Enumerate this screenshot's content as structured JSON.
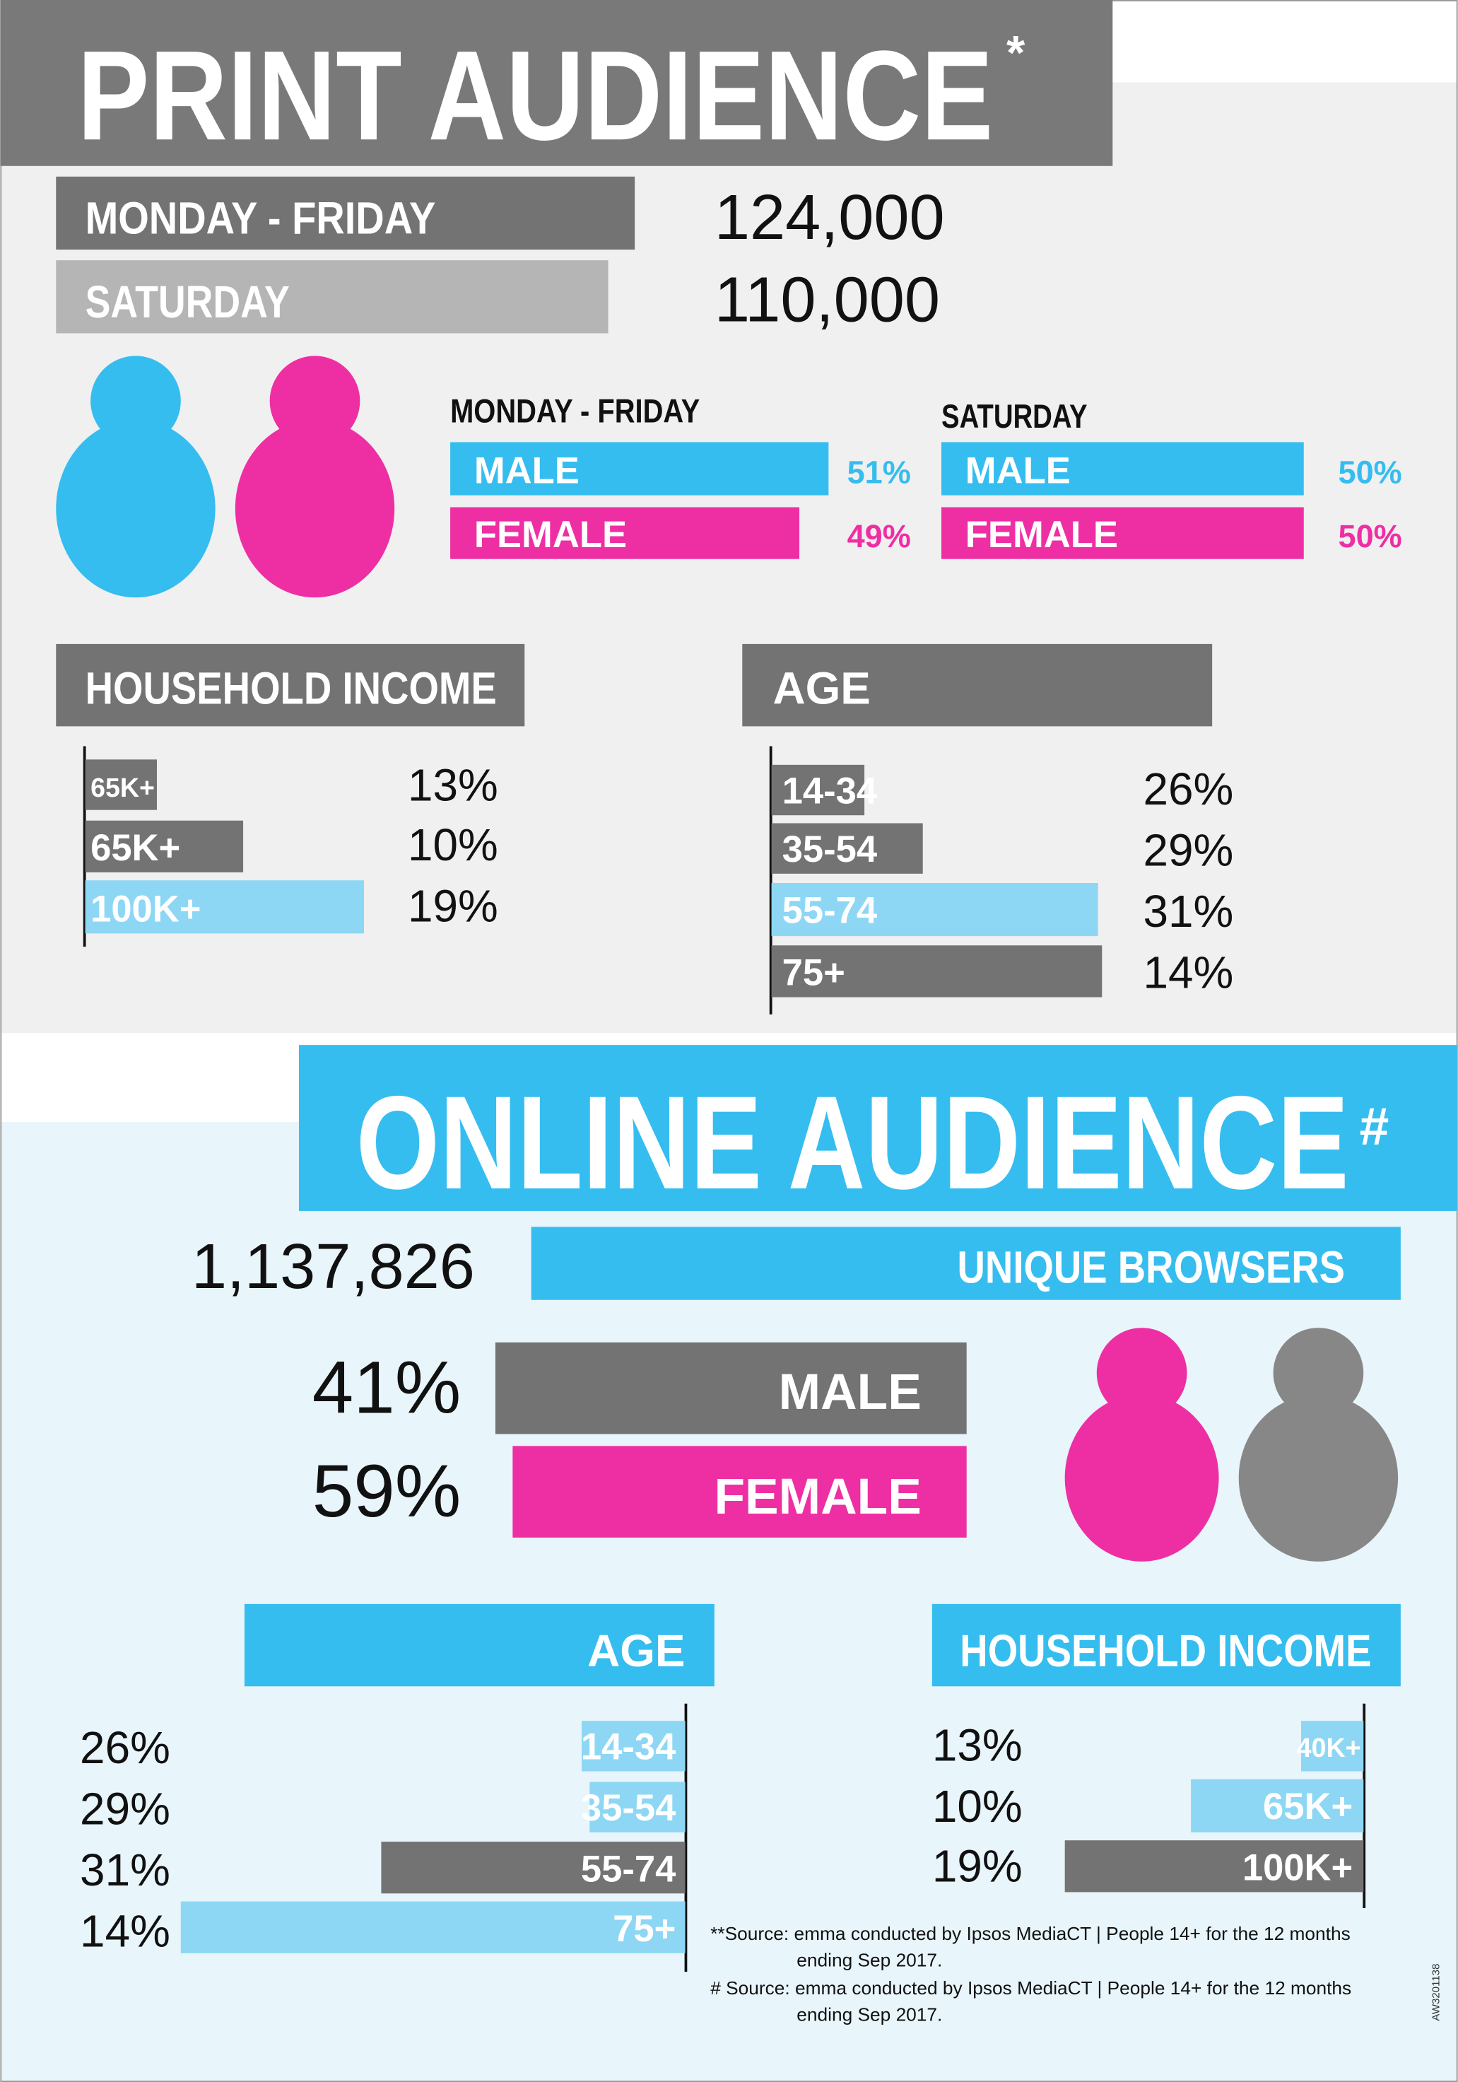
{
  "print": {
    "title": "PRINT AUDIENCE",
    "title_mark": "*",
    "readership": [
      {
        "label": "MONDAY - FRIDAY",
        "value": "124,000"
      },
      {
        "label": "SATURDAY",
        "value": "110,000"
      }
    ],
    "gender": [
      {
        "heading": "MONDAY - FRIDAY",
        "rows": [
          {
            "label": "MALE",
            "value": "51%"
          },
          {
            "label": "FEMALE",
            "value": "49%"
          }
        ]
      },
      {
        "heading": "SATURDAY",
        "rows": [
          {
            "label": "MALE",
            "value": "50%"
          },
          {
            "label": "FEMALE",
            "value": "50%"
          }
        ]
      }
    ],
    "income": {
      "heading": "HOUSEHOLD INCOME",
      "rows": [
        {
          "label": "65K+",
          "value": "13%"
        },
        {
          "label": "65K+",
          "value": "10%"
        },
        {
          "label": "100K+",
          "value": "19%"
        }
      ]
    },
    "age": {
      "heading": "AGE",
      "rows": [
        {
          "label": "14-34",
          "value": "26%"
        },
        {
          "label": "35-54",
          "value": "29%"
        },
        {
          "label": "55-74",
          "value": "31%"
        },
        {
          "label": "75+",
          "value": "14%"
        }
      ]
    }
  },
  "online": {
    "title": "ONLINE AUDIENCE",
    "title_mark": "#",
    "browsers": {
      "value": "1,137,826",
      "label": "UNIQUE BROWSERS"
    },
    "gender": [
      {
        "label": "MALE",
        "value": "41%"
      },
      {
        "label": "FEMALE",
        "value": "59%"
      }
    ],
    "age": {
      "heading": "AGE",
      "rows": [
        {
          "label": "14-34",
          "value": "26%"
        },
        {
          "label": "35-54",
          "value": "29%"
        },
        {
          "label": "55-74",
          "value": "31%"
        },
        {
          "label": "75+",
          "value": "14%"
        }
      ]
    },
    "income": {
      "heading": "HOUSEHOLD INCOME",
      "rows": [
        {
          "label": "40K+",
          "value": "13%"
        },
        {
          "label": "65K+",
          "value": "10%"
        },
        {
          "label": "100K+",
          "value": "19%"
        }
      ]
    }
  },
  "footnotes": [
    "**Source: emma conducted by Ipsos MediaCT | People 14+ for the 12 months",
    "ending Sep 2017.",
    "# Source: emma conducted by Ipsos MediaCT | People 14+ for the 12 months",
    "ending Sep 2017."
  ],
  "code": "AW3201138"
}
